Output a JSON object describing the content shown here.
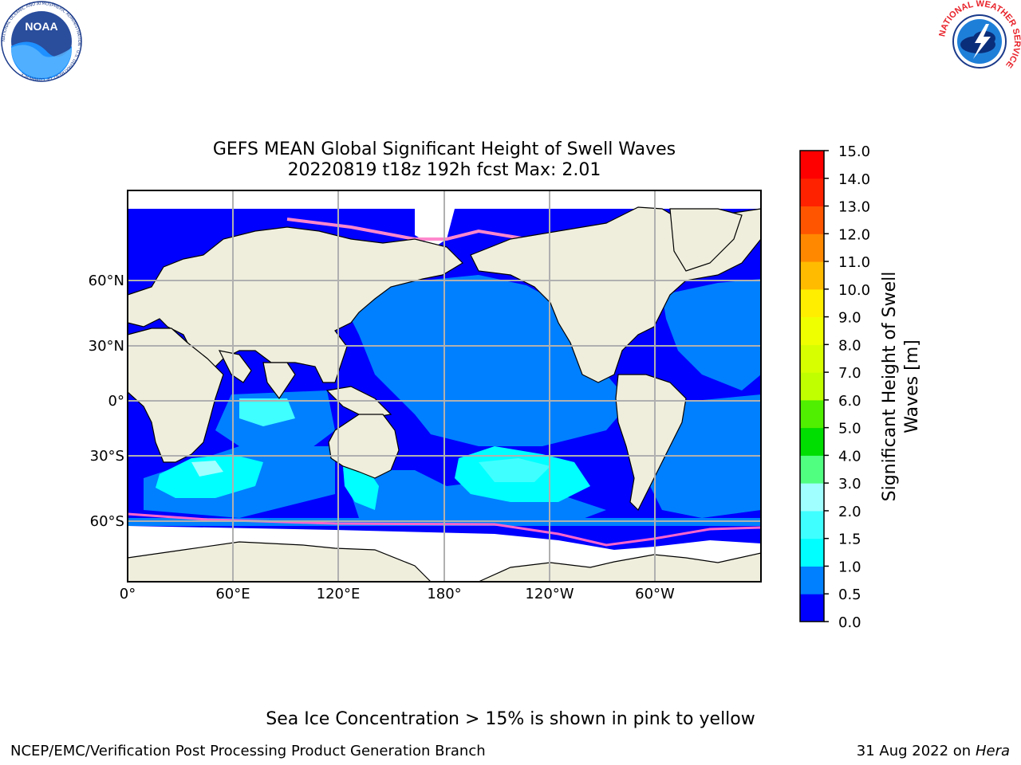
{
  "title": {
    "line1": "GEFS MEAN Global Significant Height of Swell Waves",
    "line2": "20220819 t18z 192h fcst   Max: 2.01"
  },
  "map": {
    "lon_ticks": [
      "0°",
      "60°E",
      "120°E",
      "180°",
      "120°W",
      "60°W"
    ],
    "lat_ticks": [
      "60°N",
      "30°N",
      "0°",
      "30°S",
      "60°S"
    ],
    "land_color": "#efeedd",
    "ice_color": "#ffffff",
    "grid_color": "#b0b0b0"
  },
  "colorbar": {
    "label_line1": "Significant Height of Swell",
    "label_line2": "Waves [m]",
    "ticks": [
      "0.0",
      "0.5",
      "1.0",
      "1.5",
      "2.0",
      "3.0",
      "4.0",
      "5.0",
      "6.0",
      "7.0",
      "8.0",
      "9.0",
      "10.0",
      "11.0",
      "12.0",
      "13.0",
      "14.0",
      "15.0"
    ],
    "colors": [
      "#0000ff",
      "#0080ff",
      "#00ffff",
      "#40ffff",
      "#a0ffff",
      "#50ff80",
      "#00dd00",
      "#50ee00",
      "#c0ff00",
      "#d8ff00",
      "#f0ff00",
      "#ffee00",
      "#ffbb00",
      "#ff8800",
      "#ff5500",
      "#ff2200",
      "#ff0000"
    ]
  },
  "logos": {
    "noaa_text": "NOAA",
    "noaa_ring": "NATIONAL OCEANIC AND ATMOSPHERIC ADMINISTRATION · U.S. DEPARTMENT OF COMMERCE",
    "nws_ring": "NATIONAL WEATHER SERVICE"
  },
  "footer": {
    "note": "Sea Ice Concentration > 15% is shown in pink to yellow",
    "credit": "NCEP/EMC/Verification Post Processing Product Generation Branch",
    "date": "31 Aug 2022 on",
    "machine": "Hera"
  }
}
